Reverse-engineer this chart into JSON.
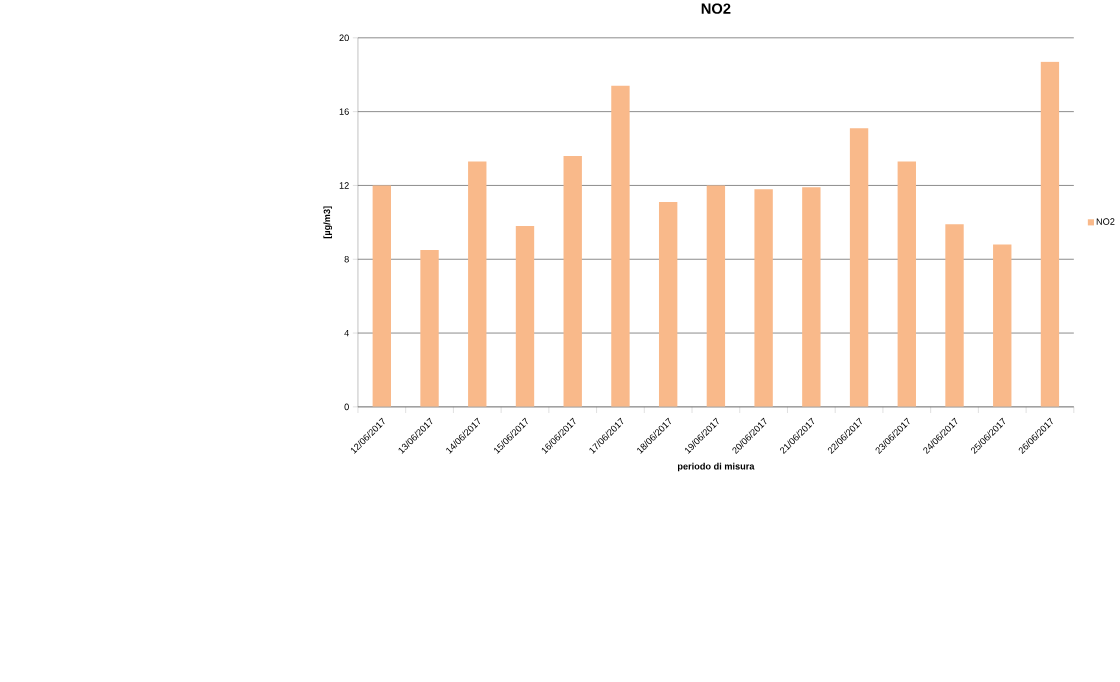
{
  "chart_data": {
    "type": "bar",
    "title": "NO2",
    "xlabel": "periodo di misura",
    "ylabel": "[µg/m3]",
    "categories": [
      "12/06/2017",
      "13/06/2017",
      "14/06/2017",
      "15/06/2017",
      "16/06/2017",
      "17/06/2017",
      "18/06/2017",
      "19/06/2017",
      "20/06/2017",
      "21/06/2017",
      "22/06/2017",
      "23/06/2017",
      "24/06/2017",
      "25/06/2017",
      "26/06/2017"
    ],
    "series": [
      {
        "name": "NO2",
        "color": "#f9b98a",
        "values": [
          12.0,
          8.5,
          13.3,
          9.8,
          13.6,
          17.4,
          11.1,
          12.0,
          11.8,
          11.9,
          15.1,
          13.3,
          9.9,
          8.8,
          18.7
        ]
      }
    ],
    "ylim": [
      0,
      20
    ],
    "yticks": [
      0,
      4,
      8,
      12,
      16,
      20
    ],
    "grid": "y",
    "legend": "right"
  }
}
